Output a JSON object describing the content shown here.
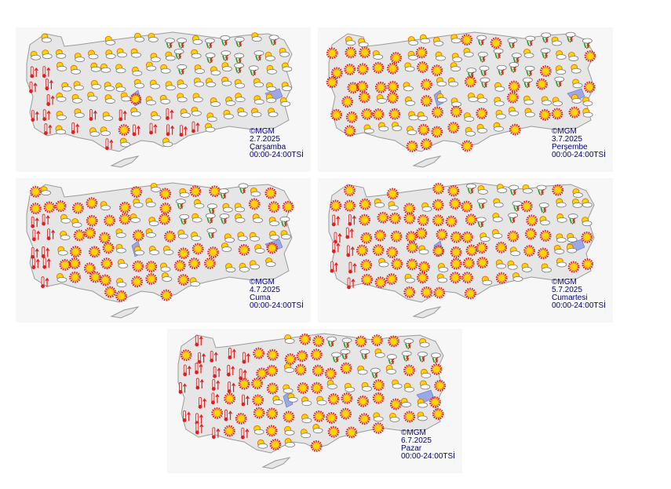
{
  "maps": [
    {
      "copyright": "©MGM",
      "date": "2.7.2025",
      "day": "Çarşamba",
      "hours": "00:00-24:00TSİ"
    },
    {
      "copyright": "©MGM",
      "date": "3.7.2025",
      "day": "Perşembe",
      "hours": "00:00-24:00TSİ"
    },
    {
      "copyright": "©MGM",
      "date": "4.7.2025",
      "day": "Cuma",
      "hours": "00:00-24:00TSİ"
    },
    {
      "copyright": "©MGM",
      "date": "5.7.2025",
      "day": "Cumartesi",
      "hours": "00:00-24:00TSİ"
    },
    {
      "copyright": "©MGM",
      "date": "6.7.2025",
      "day": "Pazar",
      "hours": "00:00-24:00TSİ"
    }
  ]
}
